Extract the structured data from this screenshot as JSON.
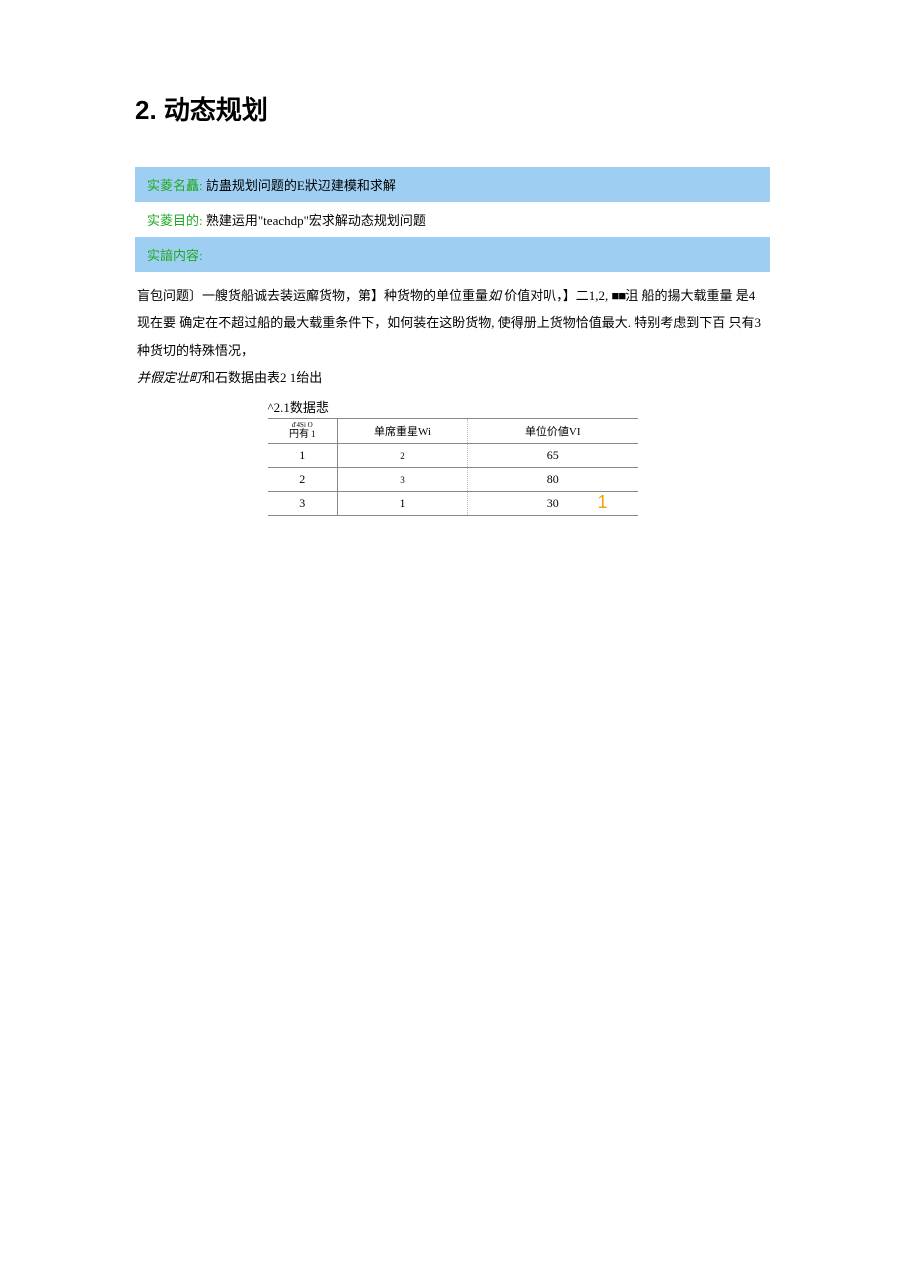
{
  "chapter": {
    "number": "2.",
    "title": "动态规划"
  },
  "sections": {
    "name": {
      "label": "实菱名矗:",
      "content": "訪蛊规划问题的E狀辺建模和求解"
    },
    "purpose": {
      "label": "实菱目的:",
      "content": "熟建运用\"teachdp\"宏求解动态规划问题"
    },
    "content_label": "实諳内容:"
  },
  "body": {
    "line1_a": "盲包问题〕一艘货船诚去装运廨货物，第】种货物的单位重量",
    "line1_b": "如",
    "line1_c": " 价值对叭，】二1,2, ",
    "line1_d": "■■",
    "line1_e": "沮 船的揚大载重量 是4现在要",
    "line2": "确定在不超过船的最大载重条件下，如何装在这盼货物, 使得册上货物恰值最大. 特别考虑到下百 只有3种货切的特殊悟况，",
    "line3_a": "并假定壮町",
    "line3_b": "和石数据由表2 1绐出"
  },
  "table": {
    "caption": "^2.1数据悲",
    "header": {
      "col1_sup": "d'4Si O",
      "col1_main": "円有",
      "col1_dot": "•",
      "col1_sub": "1",
      "col2": "单席重星Wi",
      "col3": "单位价値VI"
    },
    "rows": [
      {
        "col1": "1",
        "col2": "2",
        "col3": "65"
      },
      {
        "col1": "2",
        "col2": "3",
        "col3": "80"
      },
      {
        "col1": "3",
        "col2": "1",
        "col3": "30"
      }
    ],
    "orange_mark": "1"
  },
  "colors": {
    "bar_blue": "#9ecff2",
    "label_green": "#1fa824",
    "text": "#000000",
    "orange": "#f59e0b"
  }
}
